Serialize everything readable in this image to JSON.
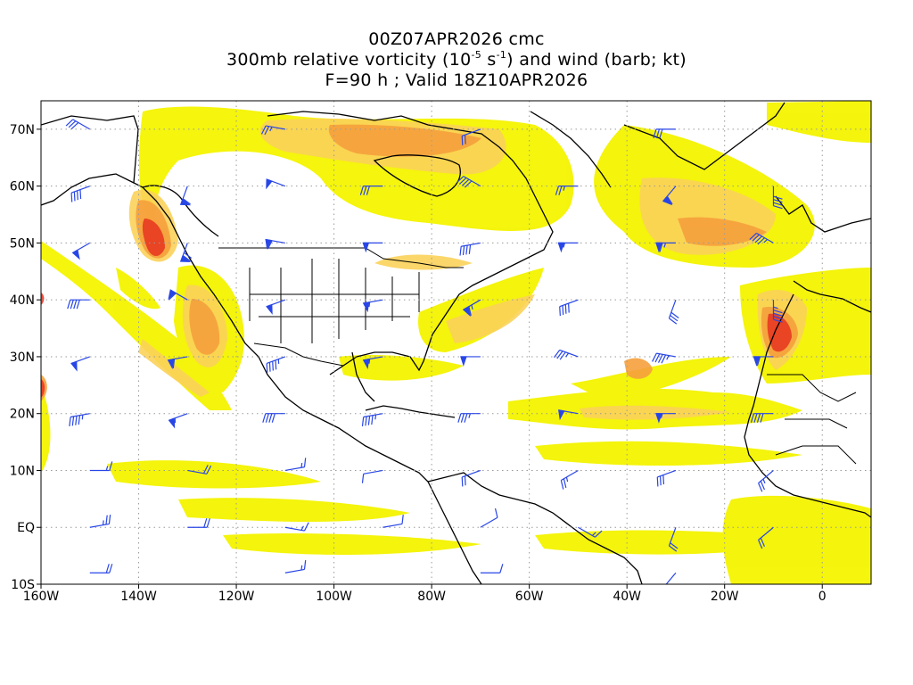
{
  "title": {
    "line1": "00Z07APR2026 cmc",
    "line2_prefix": "300mb relative vorticity (10",
    "line2_exp1": "-5",
    "line2_mid": " s",
    "line2_exp2": "-1",
    "line2_suffix": ") and wind (barb; kt)",
    "line3": "F=90 h ; Valid 18Z10APR2026"
  },
  "axes": {
    "x_ticks": [
      {
        "label": "160W",
        "lon": -160
      },
      {
        "label": "140W",
        "lon": -140
      },
      {
        "label": "120W",
        "lon": -120
      },
      {
        "label": "100W",
        "lon": -100
      },
      {
        "label": "80W",
        "lon": -80
      },
      {
        "label": "60W",
        "lon": -60
      },
      {
        "label": "40W",
        "lon": -40
      },
      {
        "label": "20W",
        "lon": -20
      },
      {
        "label": "0",
        "lon": 0
      }
    ],
    "y_ticks": [
      {
        "label": "70N",
        "lat": 70
      },
      {
        "label": "60N",
        "lat": 60
      },
      {
        "label": "50N",
        "lat": 50
      },
      {
        "label": "40N",
        "lat": 40
      },
      {
        "label": "30N",
        "lat": 30
      },
      {
        "label": "20N",
        "lat": 20
      },
      {
        "label": "10N",
        "lat": 10
      },
      {
        "label": "EQ",
        "lat": 0
      },
      {
        "label": "10S",
        "lat": -10
      }
    ],
    "lon_range": [
      -160,
      10
    ],
    "lat_range": [
      -10,
      75
    ],
    "grid": "dotted"
  },
  "colors": {
    "vort_low": "#f4f400",
    "vort_mid": "#fbd25a",
    "vort_high": "#f5a03c",
    "vort_max": "#e6321e",
    "barb": "#2846e6",
    "coast": "#000000",
    "grid": "#9a9a9a"
  },
  "vorticity_blobs": [
    {
      "lon": -136,
      "lat": 52,
      "rx": 5,
      "ry": 8,
      "level": 3
    },
    {
      "lon": -125,
      "lat": 37,
      "rx": 4,
      "ry": 8,
      "level": 2
    },
    {
      "lon": -93,
      "lat": 65,
      "rx": 28,
      "ry": 7,
      "level": 2
    },
    {
      "lon": -28,
      "lat": 53,
      "rx": 18,
      "ry": 6,
      "level": 2
    },
    {
      "lon": -10,
      "lat": 33,
      "rx": 4,
      "ry": 7,
      "level": 3
    },
    {
      "lon": -68,
      "lat": 36,
      "rx": 10,
      "ry": 4,
      "level": 2
    },
    {
      "lon": -36,
      "lat": 20,
      "rx": 18,
      "ry": 3,
      "level": 1
    },
    {
      "lon": -40,
      "lat": 27,
      "rx": 2,
      "ry": 2,
      "level": 2
    },
    {
      "lon": -160,
      "lat": 25,
      "rx": 2,
      "ry": 4,
      "level": 3
    },
    {
      "lon": -160,
      "lat": 40,
      "rx": 1,
      "ry": 1.5,
      "level": 3
    }
  ],
  "wind_barbs": [
    {
      "lon": -150,
      "lat": 60,
      "dir": 250,
      "spd": 40
    },
    {
      "lon": -130,
      "lat": 60,
      "dir": 200,
      "spd": 60
    },
    {
      "lon": -110,
      "lat": 60,
      "dir": 290,
      "spd": 50
    },
    {
      "lon": -90,
      "lat": 60,
      "dir": 270,
      "spd": 30
    },
    {
      "lon": -70,
      "lat": 60,
      "dir": 300,
      "spd": 40
    },
    {
      "lon": -50,
      "lat": 60,
      "dir": 270,
      "spd": 25
    },
    {
      "lon": -30,
      "lat": 60,
      "dir": 220,
      "spd": 60
    },
    {
      "lon": -10,
      "lat": 60,
      "dir": 180,
      "spd": 40
    },
    {
      "lon": -150,
      "lat": 70,
      "dir": 300,
      "spd": 30
    },
    {
      "lon": -110,
      "lat": 70,
      "dir": 280,
      "spd": 25
    },
    {
      "lon": -70,
      "lat": 70,
      "dir": 250,
      "spd": 20
    },
    {
      "lon": -30,
      "lat": 70,
      "dir": 270,
      "spd": 30
    },
    {
      "lon": -150,
      "lat": 50,
      "dir": 240,
      "spd": 50
    },
    {
      "lon": -130,
      "lat": 50,
      "dir": 200,
      "spd": 70
    },
    {
      "lon": -110,
      "lat": 50,
      "dir": 280,
      "spd": 60
    },
    {
      "lon": -90,
      "lat": 50,
      "dir": 270,
      "spd": 50
    },
    {
      "lon": -70,
      "lat": 50,
      "dir": 260,
      "spd": 40
    },
    {
      "lon": -50,
      "lat": 50,
      "dir": 270,
      "spd": 55
    },
    {
      "lon": -30,
      "lat": 50,
      "dir": 270,
      "spd": 65
    },
    {
      "lon": -10,
      "lat": 50,
      "dir": 300,
      "spd": 45
    },
    {
      "lon": -150,
      "lat": 40,
      "dir": 270,
      "spd": 40
    },
    {
      "lon": -130,
      "lat": 40,
      "dir": 300,
      "spd": 60
    },
    {
      "lon": -110,
      "lat": 40,
      "dir": 250,
      "spd": 50
    },
    {
      "lon": -90,
      "lat": 40,
      "dir": 260,
      "spd": 55
    },
    {
      "lon": -70,
      "lat": 40,
      "dir": 240,
      "spd": 65
    },
    {
      "lon": -50,
      "lat": 40,
      "dir": 250,
      "spd": 40
    },
    {
      "lon": -30,
      "lat": 40,
      "dir": 200,
      "spd": 30
    },
    {
      "lon": -10,
      "lat": 40,
      "dir": 180,
      "spd": 45
    },
    {
      "lon": -150,
      "lat": 30,
      "dir": 250,
      "spd": 50
    },
    {
      "lon": -130,
      "lat": 30,
      "dir": 260,
      "spd": 60
    },
    {
      "lon": -110,
      "lat": 30,
      "dir": 250,
      "spd": 45
    },
    {
      "lon": -90,
      "lat": 30,
      "dir": 260,
      "spd": 55
    },
    {
      "lon": -70,
      "lat": 30,
      "dir": 270,
      "spd": 50
    },
    {
      "lon": -50,
      "lat": 30,
      "dir": 290,
      "spd": 35
    },
    {
      "lon": -30,
      "lat": 30,
      "dir": 280,
      "spd": 45
    },
    {
      "lon": -10,
      "lat": 30,
      "dir": 270,
      "spd": 60
    },
    {
      "lon": -150,
      "lat": 20,
      "dir": 260,
      "spd": 45
    },
    {
      "lon": -130,
      "lat": 20,
      "dir": 250,
      "spd": 55
    },
    {
      "lon": -110,
      "lat": 20,
      "dir": 270,
      "spd": 40
    },
    {
      "lon": -90,
      "lat": 20,
      "dir": 260,
      "spd": 45
    },
    {
      "lon": -70,
      "lat": 20,
      "dir": 270,
      "spd": 35
    },
    {
      "lon": -50,
      "lat": 20,
      "dir": 280,
      "spd": 50
    },
    {
      "lon": -30,
      "lat": 20,
      "dir": 270,
      "spd": 55
    },
    {
      "lon": -10,
      "lat": 20,
      "dir": 270,
      "spd": 40
    },
    {
      "lon": -150,
      "lat": 10,
      "dir": 90,
      "spd": 15
    },
    {
      "lon": -130,
      "lat": 10,
      "dir": 100,
      "spd": 20
    },
    {
      "lon": -110,
      "lat": 10,
      "dir": 80,
      "spd": 15
    },
    {
      "lon": -90,
      "lat": 10,
      "dir": 260,
      "spd": 10
    },
    {
      "lon": -70,
      "lat": 10,
      "dir": 250,
      "spd": 20
    },
    {
      "lon": -50,
      "lat": 10,
      "dir": 240,
      "spd": 25
    },
    {
      "lon": -30,
      "lat": 10,
      "dir": 250,
      "spd": 30
    },
    {
      "lon": -10,
      "lat": 10,
      "dir": 230,
      "spd": 25
    },
    {
      "lon": -150,
      "lat": 0,
      "dir": 80,
      "spd": 25
    },
    {
      "lon": -130,
      "lat": 0,
      "dir": 90,
      "spd": 20
    },
    {
      "lon": -110,
      "lat": 0,
      "dir": 100,
      "spd": 15
    },
    {
      "lon": -90,
      "lat": 0,
      "dir": 80,
      "spd": 10
    },
    {
      "lon": -70,
      "lat": 0,
      "dir": 60,
      "spd": 10
    },
    {
      "lon": -50,
      "lat": 0,
      "dir": 120,
      "spd": 15
    },
    {
      "lon": -30,
      "lat": 0,
      "dir": 200,
      "spd": 20
    },
    {
      "lon": -10,
      "lat": 0,
      "dir": 230,
      "spd": 20
    },
    {
      "lon": -150,
      "lat": -8,
      "dir": 90,
      "spd": 20
    },
    {
      "lon": -110,
      "lat": -8,
      "dir": 80,
      "spd": 15
    },
    {
      "lon": -70,
      "lat": -8,
      "dir": 90,
      "spd": 10
    },
    {
      "lon": -30,
      "lat": -8,
      "dir": 220,
      "spd": 15
    }
  ]
}
